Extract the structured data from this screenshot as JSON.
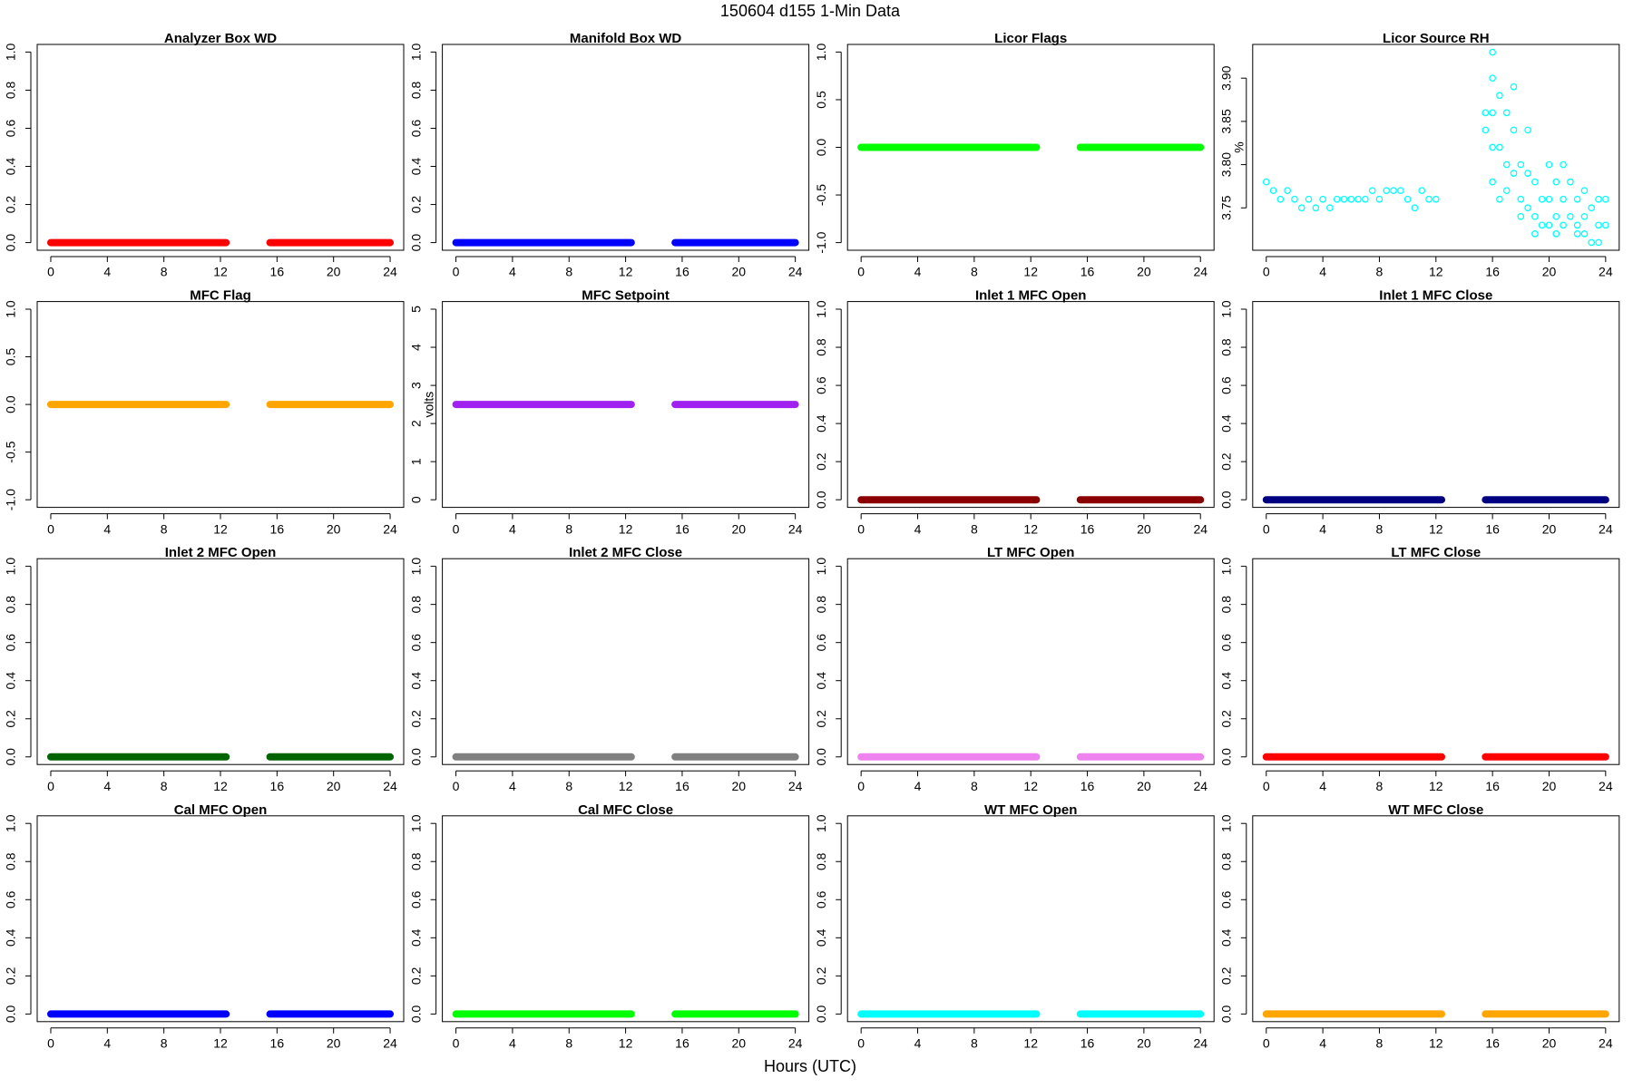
{
  "title": "150604   d155   1-Min Data",
  "xlabel": "Hours (UTC)",
  "chart_data": [
    {
      "type": "line",
      "title": "Analyzer Box WD",
      "x": [
        0,
        12.4,
        null,
        15.5,
        24
      ],
      "series": [
        {
          "color": "#ff0000",
          "values": [
            0,
            0,
            null,
            0,
            0
          ]
        }
      ],
      "xlim": [
        -0.96,
        24.96
      ],
      "xticks": [
        0,
        4,
        8,
        12,
        16,
        20,
        24
      ],
      "ylim": [
        -0.04,
        1.04
      ],
      "yticks": [
        {
          "value": 0,
          "label": "0.0"
        },
        0.2,
        0.4,
        0.6,
        0.8,
        {
          "value": 1,
          "label": "1.0"
        }
      ]
    },
    {
      "type": "line",
      "title": "Manifold Box WD",
      "x": [
        0,
        12.4,
        null,
        15.5,
        24
      ],
      "series": [
        {
          "color": "#0000ff",
          "values": [
            0,
            0,
            null,
            0,
            0
          ]
        }
      ],
      "xlim": [
        -0.96,
        24.96
      ],
      "xticks": [
        0,
        4,
        8,
        12,
        16,
        20,
        24
      ],
      "ylim": [
        -0.04,
        1.04
      ],
      "yticks": [
        {
          "value": 0,
          "label": "0.0"
        },
        0.2,
        0.4,
        0.6,
        0.8,
        {
          "value": 1,
          "label": "1.0"
        }
      ]
    },
    {
      "type": "line",
      "title": "Licor Flags",
      "x": [
        0,
        12.4,
        null,
        15.5,
        24
      ],
      "series": [
        {
          "color": "#00ff00",
          "values": [
            0,
            0,
            null,
            0,
            0
          ]
        }
      ],
      "xlim": [
        -0.96,
        24.96
      ],
      "xticks": [
        0,
        4,
        8,
        12,
        16,
        20,
        24
      ],
      "ylim": [
        -1.08,
        1.08
      ],
      "yticks": [
        {
          "value": -1,
          "label": "-1.0"
        },
        -0.5,
        {
          "value": 0,
          "label": "0.0"
        },
        0.5,
        {
          "value": 1,
          "label": "1.0"
        }
      ]
    },
    {
      "type": "scatter",
      "title": "Licor Source RH",
      "ylabel": "%",
      "x": [
        0,
        0.5,
        1,
        1.5,
        2,
        2.5,
        3,
        3.5,
        4,
        4.5,
        5,
        5.5,
        6,
        6.5,
        7,
        7.5,
        8,
        8.5,
        9,
        9.5,
        10,
        10.5,
        11,
        11.5,
        12,
        15.5,
        15.5,
        16,
        16,
        16,
        16,
        16,
        16.5,
        16.5,
        16.5,
        17,
        17,
        17,
        17.5,
        17.5,
        17.5,
        18,
        18,
        18,
        18.5,
        18.5,
        18.5,
        19,
        19,
        19,
        19.5,
        19.5,
        20,
        20,
        20,
        20.5,
        20.5,
        20.5,
        21,
        21,
        21,
        21.5,
        21.5,
        22,
        22,
        22,
        22.5,
        22.5,
        22.5,
        23,
        23,
        23.5,
        23.5,
        23.5,
        24,
        24
      ],
      "series": [
        {
          "color": "#00ffff",
          "values": [
            3.78,
            3.77,
            3.76,
            3.77,
            3.76,
            3.75,
            3.76,
            3.75,
            3.76,
            3.75,
            3.76,
            3.76,
            3.76,
            3.76,
            3.76,
            3.77,
            3.76,
            3.77,
            3.77,
            3.77,
            3.76,
            3.75,
            3.77,
            3.76,
            3.76,
            3.84,
            3.86,
            3.93,
            3.9,
            3.86,
            3.82,
            3.78,
            3.88,
            3.82,
            3.76,
            3.86,
            3.8,
            3.77,
            3.89,
            3.84,
            3.79,
            3.8,
            3.76,
            3.74,
            3.84,
            3.79,
            3.75,
            3.78,
            3.74,
            3.72,
            3.76,
            3.73,
            3.8,
            3.76,
            3.73,
            3.78,
            3.74,
            3.72,
            3.8,
            3.76,
            3.73,
            3.78,
            3.74,
            3.76,
            3.73,
            3.72,
            3.77,
            3.74,
            3.72,
            3.75,
            3.71,
            3.76,
            3.73,
            3.71,
            3.76,
            3.73
          ]
        }
      ],
      "xlim": [
        -0.96,
        24.96
      ],
      "xticks": [
        0,
        4,
        8,
        12,
        16,
        20,
        24
      ],
      "ylim": [
        3.701,
        3.939
      ],
      "yticks": [
        3.75,
        {
          "value": 3.8,
          "label": "3.80"
        },
        3.85,
        {
          "value": 3.9,
          "label": "3.90"
        }
      ]
    },
    {
      "type": "line",
      "title": "MFC Flag",
      "x": [
        0,
        12.4,
        null,
        15.5,
        24
      ],
      "series": [
        {
          "color": "#ffa500",
          "values": [
            0,
            0,
            null,
            0,
            0
          ]
        }
      ],
      "xlim": [
        -0.96,
        24.96
      ],
      "xticks": [
        0,
        4,
        8,
        12,
        16,
        20,
        24
      ],
      "ylim": [
        -1.08,
        1.08
      ],
      "yticks": [
        {
          "value": -1,
          "label": "-1.0"
        },
        -0.5,
        {
          "value": 0,
          "label": "0.0"
        },
        0.5,
        {
          "value": 1,
          "label": "1.0"
        }
      ]
    },
    {
      "type": "line",
      "title": "MFC Setpoint",
      "ylabel": "volts",
      "x": [
        0,
        12.4,
        null,
        15.5,
        24
      ],
      "series": [
        {
          "color": "#a020f0",
          "values": [
            2.5,
            2.5,
            null,
            2.5,
            2.5
          ]
        }
      ],
      "xlim": [
        -0.96,
        24.96
      ],
      "xticks": [
        0,
        4,
        8,
        12,
        16,
        20,
        24
      ],
      "ylim": [
        -0.2,
        5.2
      ],
      "yticks": [
        0,
        1,
        2,
        3,
        4,
        5
      ]
    },
    {
      "type": "line",
      "title": "Inlet 1 MFC Open",
      "x": [
        0,
        12.4,
        null,
        15.5,
        24
      ],
      "series": [
        {
          "color": "#8b0000",
          "values": [
            0,
            0,
            null,
            0,
            0
          ]
        }
      ],
      "xlim": [
        -0.96,
        24.96
      ],
      "xticks": [
        0,
        4,
        8,
        12,
        16,
        20,
        24
      ],
      "ylim": [
        -0.04,
        1.04
      ],
      "yticks": [
        {
          "value": 0,
          "label": "0.0"
        },
        0.2,
        0.4,
        0.6,
        0.8,
        {
          "value": 1,
          "label": "1.0"
        }
      ]
    },
    {
      "type": "line",
      "title": "Inlet 1 MFC Close",
      "x": [
        0,
        12.4,
        null,
        15.5,
        24
      ],
      "series": [
        {
          "color": "#000080",
          "values": [
            0,
            0,
            null,
            0,
            0
          ]
        }
      ],
      "xlim": [
        -0.96,
        24.96
      ],
      "xticks": [
        0,
        4,
        8,
        12,
        16,
        20,
        24
      ],
      "ylim": [
        -0.04,
        1.04
      ],
      "yticks": [
        {
          "value": 0,
          "label": "0.0"
        },
        0.2,
        0.4,
        0.6,
        0.8,
        {
          "value": 1,
          "label": "1.0"
        }
      ]
    },
    {
      "type": "line",
      "title": "Inlet 2 MFC Open",
      "x": [
        0,
        12.4,
        null,
        15.5,
        24
      ],
      "series": [
        {
          "color": "#006400",
          "values": [
            0,
            0,
            null,
            0,
            0
          ]
        }
      ],
      "xlim": [
        -0.96,
        24.96
      ],
      "xticks": [
        0,
        4,
        8,
        12,
        16,
        20,
        24
      ],
      "ylim": [
        -0.04,
        1.04
      ],
      "yticks": [
        {
          "value": 0,
          "label": "0.0"
        },
        0.2,
        0.4,
        0.6,
        0.8,
        {
          "value": 1,
          "label": "1.0"
        }
      ]
    },
    {
      "type": "line",
      "title": "Inlet 2 MFC Close",
      "x": [
        0,
        12.4,
        null,
        15.5,
        24
      ],
      "series": [
        {
          "color": "#808080",
          "values": [
            0,
            0,
            null,
            0,
            0
          ]
        }
      ],
      "xlim": [
        -0.96,
        24.96
      ],
      "xticks": [
        0,
        4,
        8,
        12,
        16,
        20,
        24
      ],
      "ylim": [
        -0.04,
        1.04
      ],
      "yticks": [
        {
          "value": 0,
          "label": "0.0"
        },
        0.2,
        0.4,
        0.6,
        0.8,
        {
          "value": 1,
          "label": "1.0"
        }
      ]
    },
    {
      "type": "line",
      "title": "LT MFC Open",
      "x": [
        0,
        12.4,
        null,
        15.5,
        24
      ],
      "series": [
        {
          "color": "#ee82ee",
          "values": [
            0,
            0,
            null,
            0,
            0
          ]
        }
      ],
      "xlim": [
        -0.96,
        24.96
      ],
      "xticks": [
        0,
        4,
        8,
        12,
        16,
        20,
        24
      ],
      "ylim": [
        -0.04,
        1.04
      ],
      "yticks": [
        {
          "value": 0,
          "label": "0.0"
        },
        0.2,
        0.4,
        0.6,
        0.8,
        {
          "value": 1,
          "label": "1.0"
        }
      ]
    },
    {
      "type": "line",
      "title": "LT MFC Close",
      "x": [
        0,
        12.4,
        null,
        15.5,
        24
      ],
      "series": [
        {
          "color": "#ff0000",
          "values": [
            0,
            0,
            null,
            0,
            0
          ]
        }
      ],
      "xlim": [
        -0.96,
        24.96
      ],
      "xticks": [
        0,
        4,
        8,
        12,
        16,
        20,
        24
      ],
      "ylim": [
        -0.04,
        1.04
      ],
      "yticks": [
        {
          "value": 0,
          "label": "0.0"
        },
        0.2,
        0.4,
        0.6,
        0.8,
        {
          "value": 1,
          "label": "1.0"
        }
      ]
    },
    {
      "type": "line",
      "title": "Cal MFC Open",
      "x": [
        0,
        12.4,
        null,
        15.5,
        24
      ],
      "series": [
        {
          "color": "#0000ff",
          "values": [
            0,
            0,
            null,
            0,
            0
          ]
        }
      ],
      "xlim": [
        -0.96,
        24.96
      ],
      "xticks": [
        0,
        4,
        8,
        12,
        16,
        20,
        24
      ],
      "ylim": [
        -0.04,
        1.04
      ],
      "yticks": [
        {
          "value": 0,
          "label": "0.0"
        },
        0.2,
        0.4,
        0.6,
        0.8,
        {
          "value": 1,
          "label": "1.0"
        }
      ]
    },
    {
      "type": "line",
      "title": "Cal MFC Close",
      "x": [
        0,
        12.4,
        null,
        15.5,
        24
      ],
      "series": [
        {
          "color": "#00ff00",
          "values": [
            0,
            0,
            null,
            0,
            0
          ]
        }
      ],
      "xlim": [
        -0.96,
        24.96
      ],
      "xticks": [
        0,
        4,
        8,
        12,
        16,
        20,
        24
      ],
      "ylim": [
        -0.04,
        1.04
      ],
      "yticks": [
        {
          "value": 0,
          "label": "0.0"
        },
        0.2,
        0.4,
        0.6,
        0.8,
        {
          "value": 1,
          "label": "1.0"
        }
      ]
    },
    {
      "type": "line",
      "title": "WT MFC Open",
      "x": [
        0,
        12.4,
        null,
        15.5,
        24
      ],
      "series": [
        {
          "color": "#00ffff",
          "values": [
            0,
            0,
            null,
            0,
            0
          ]
        }
      ],
      "xlim": [
        -0.96,
        24.96
      ],
      "xticks": [
        0,
        4,
        8,
        12,
        16,
        20,
        24
      ],
      "ylim": [
        -0.04,
        1.04
      ],
      "yticks": [
        {
          "value": 0,
          "label": "0.0"
        },
        0.2,
        0.4,
        0.6,
        0.8,
        {
          "value": 1,
          "label": "1.0"
        }
      ]
    },
    {
      "type": "line",
      "title": "WT MFC Close",
      "x": [
        0,
        12.4,
        null,
        15.5,
        24
      ],
      "series": [
        {
          "color": "#ffa500",
          "values": [
            0,
            0,
            null,
            0,
            0
          ]
        }
      ],
      "xlim": [
        -0.96,
        24.96
      ],
      "xticks": [
        0,
        4,
        8,
        12,
        16,
        20,
        24
      ],
      "ylim": [
        -0.04,
        1.04
      ],
      "yticks": [
        {
          "value": 0,
          "label": "0.0"
        },
        0.2,
        0.4,
        0.6,
        0.8,
        {
          "value": 1,
          "label": "1.0"
        }
      ]
    }
  ]
}
